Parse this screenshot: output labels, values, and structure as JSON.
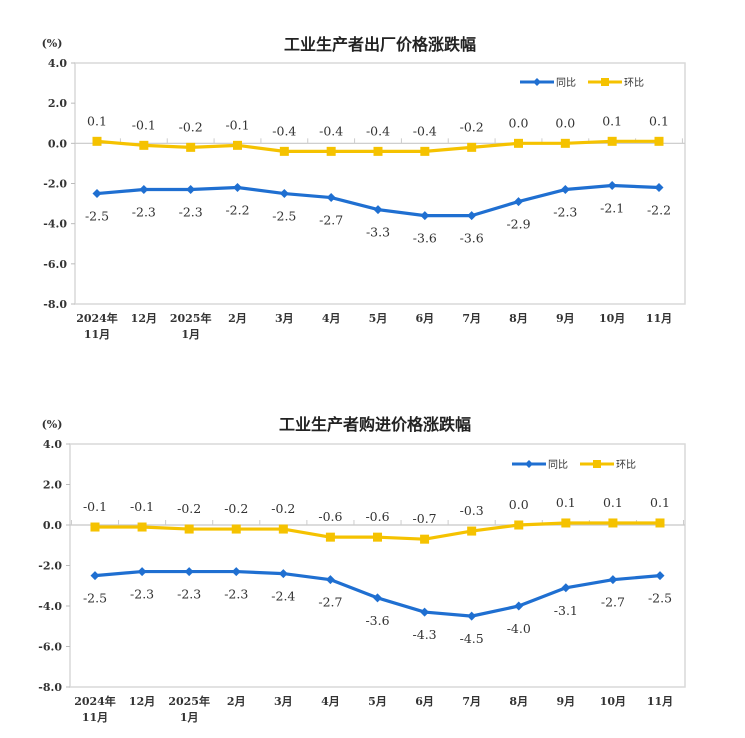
{
  "chart_data": [
    {
      "type": "line",
      "title": "工业生产者出厂价格涨跌幅",
      "ylabel": "(%)",
      "ylim": [
        -8.0,
        4.0
      ],
      "yticks": [
        "4.0",
        "2.0",
        "0.0",
        "-2.0",
        "-4.0",
        "-6.0",
        "-8.0"
      ],
      "categories": [
        "2024年\n11月",
        "12月",
        "2025年\n1月",
        "2月",
        "3月",
        "4月",
        "5月",
        "6月",
        "7月",
        "8月",
        "9月",
        "10月",
        "11月"
      ],
      "legend_position": "top-right",
      "grid": false,
      "series": [
        {
          "name": "同比",
          "color": "#1f6fd1",
          "marker": "diamond",
          "label_position": "below",
          "values": [
            -2.5,
            -2.3,
            -2.3,
            -2.2,
            -2.5,
            -2.7,
            -3.3,
            -3.6,
            -3.6,
            -2.9,
            -2.3,
            -2.1,
            -2.2
          ]
        },
        {
          "name": "环比",
          "color": "#f5c200",
          "marker": "square",
          "label_position": "above",
          "values": [
            0.1,
            -0.1,
            -0.2,
            -0.1,
            -0.4,
            -0.4,
            -0.4,
            -0.4,
            -0.2,
            0.0,
            0.0,
            0.1,
            0.1
          ]
        }
      ]
    },
    {
      "type": "line",
      "title": "工业生产者购进价格涨跌幅",
      "ylabel": "(%)",
      "ylim": [
        -8.0,
        4.0
      ],
      "yticks": [
        "4.0",
        "2.0",
        "0.0",
        "-2.0",
        "-4.0",
        "-6.0",
        "-8.0"
      ],
      "categories": [
        "2024年\n11月",
        "12月",
        "2025年\n1月",
        "2月",
        "3月",
        "4月",
        "5月",
        "6月",
        "7月",
        "8月",
        "9月",
        "10月",
        "11月"
      ],
      "legend_position": "top-right",
      "grid": false,
      "series": [
        {
          "name": "同比",
          "color": "#1f6fd1",
          "marker": "diamond",
          "label_position": "below",
          "values": [
            -2.5,
            -2.3,
            -2.3,
            -2.3,
            -2.4,
            -2.7,
            -3.6,
            -4.3,
            -4.5,
            -4.0,
            -3.1,
            -2.7,
            -2.5
          ]
        },
        {
          "name": "环比",
          "color": "#f5c200",
          "marker": "square",
          "label_position": "above",
          "values": [
            -0.1,
            -0.1,
            -0.2,
            -0.2,
            -0.2,
            -0.6,
            -0.6,
            -0.7,
            -0.3,
            0.0,
            0.1,
            0.1,
            0.1
          ]
        }
      ]
    }
  ]
}
